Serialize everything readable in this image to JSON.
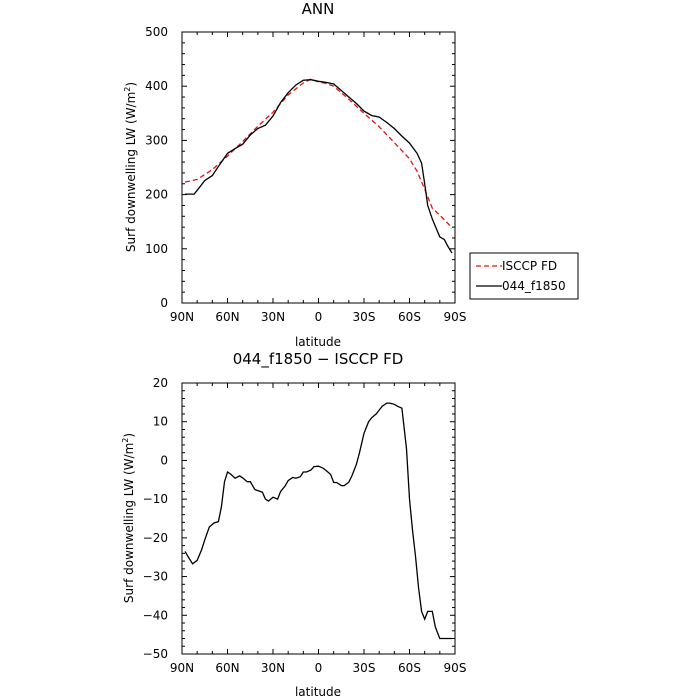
{
  "chart_data": [
    {
      "type": "line",
      "title": "ANN",
      "xlabel": "latitude",
      "ylabel": "Surf downwelling LW (W/m²)",
      "ylabel_base": "Surf downwelling LW (W/m",
      "ylabel_sup": "2",
      "ylabel_close": ")",
      "xlim": [
        90,
        -90
      ],
      "ylim": [
        0,
        500
      ],
      "xticks": [
        90,
        60,
        30,
        0,
        -30,
        -60,
        -90
      ],
      "xtick_labels": [
        "90N",
        "60N",
        "30N",
        "0",
        "30S",
        "60S",
        "90S"
      ],
      "yticks": [
        0,
        100,
        200,
        300,
        400,
        500
      ],
      "ytick_labels": [
        "0",
        "100",
        "200",
        "300",
        "400",
        "500"
      ],
      "grid": false,
      "legend": "right",
      "series": [
        {
          "name": "ISCCP FD",
          "color": "#e8100f",
          "dash": "dashed",
          "x": [
            88,
            80,
            70,
            60,
            50,
            40,
            30,
            20,
            10,
            5,
            0,
            -5,
            -10,
            -20,
            -30,
            -40,
            -50,
            -60,
            -65,
            -70,
            -75,
            -80,
            -85,
            -88
          ],
          "y": [
            223,
            228,
            246,
            271,
            298,
            326,
            352,
            384,
            406,
            413,
            408,
            405,
            400,
            376,
            350,
            325,
            296,
            266,
            243,
            210,
            175,
            162,
            148,
            138
          ]
        },
        {
          "name": "044_f1850",
          "color": "#000000",
          "dash": "solid",
          "x": [
            88,
            82,
            80,
            75,
            70,
            65,
            60,
            55,
            50,
            45,
            40,
            35,
            30,
            25,
            20,
            15,
            10,
            5,
            0,
            -5,
            -10,
            -15,
            -20,
            -25,
            -30,
            -35,
            -40,
            -45,
            -50,
            -55,
            -60,
            -65,
            -68,
            -70,
            -72,
            -75,
            -78,
            -80,
            -83,
            -85,
            -88
          ],
          "y": [
            201,
            201,
            208,
            226,
            235,
            256,
            276,
            285,
            293,
            310,
            322,
            328,
            345,
            370,
            388,
            402,
            411,
            412,
            409,
            407,
            404,
            392,
            380,
            368,
            354,
            346,
            343,
            333,
            322,
            308,
            295,
            276,
            258,
            220,
            180,
            155,
            135,
            122,
            117,
            106,
            92
          ]
        }
      ]
    },
    {
      "type": "line",
      "title": "044_f1850 − ISCCP FD",
      "xlabel": "latitude",
      "ylabel": "Surf downwelling LW (W/m²)",
      "ylabel_base": "Surf downwelling LW (W/m",
      "ylabel_sup": "2",
      "ylabel_close": ")",
      "xlim": [
        90,
        -90
      ],
      "ylim": [
        -50,
        20
      ],
      "xticks": [
        90,
        60,
        30,
        0,
        -30,
        -60,
        -90
      ],
      "xtick_labels": [
        "90N",
        "60N",
        "30N",
        "0",
        "30S",
        "60S",
        "90S"
      ],
      "yticks": [
        -50,
        -40,
        -30,
        -20,
        -10,
        0,
        10,
        20
      ],
      "ytick_labels": [
        "−50",
        "−40",
        "−30",
        "−20",
        "−10",
        "0",
        "10",
        "20"
      ],
      "grid": false,
      "series": [
        {
          "color": "#000000",
          "dash": "solid",
          "x": [
            88,
            85,
            83,
            80,
            77,
            75,
            72,
            69,
            66,
            64,
            62,
            60,
            58,
            55,
            52,
            50,
            47,
            45,
            42,
            40,
            37,
            35,
            33,
            30,
            27,
            25,
            22,
            20,
            17,
            15,
            12,
            10,
            8,
            5,
            3,
            0,
            -3,
            -5,
            -8,
            -10,
            -12,
            -15,
            -17,
            -20,
            -22,
            -25,
            -27,
            -30,
            -33,
            -35,
            -38,
            -40,
            -42,
            -45,
            -47,
            -50,
            -52,
            -55,
            -58,
            -60,
            -62,
            -64,
            -66,
            -68,
            -70,
            -72,
            -75,
            -77,
            -80,
            -82,
            -84,
            -86,
            -88
          ],
          "y": [
            -23.5,
            -25.5,
            -26.7,
            -25.8,
            -23,
            -20.5,
            -17.2,
            -16.2,
            -15.8,
            -12,
            -5.5,
            -3,
            -3.5,
            -4.6,
            -4,
            -4.5,
            -5.5,
            -5.5,
            -7.5,
            -7.8,
            -8.2,
            -10,
            -10.5,
            -9.5,
            -10,
            -8,
            -6.6,
            -5.2,
            -4.4,
            -4.6,
            -4.2,
            -3,
            -3,
            -2.5,
            -1.6,
            -1.5,
            -2,
            -2.6,
            -3.6,
            -5.7,
            -5.7,
            -6.5,
            -6.5,
            -5.6,
            -4,
            -1,
            2,
            7,
            10,
            11,
            12,
            13,
            14,
            14.8,
            14.8,
            14.5,
            14,
            13.5,
            3,
            -10,
            -18,
            -25,
            -33,
            -39,
            -41,
            -39,
            -39,
            -43,
            -46,
            -46,
            -46,
            -46,
            -46
          ]
        }
      ]
    }
  ]
}
